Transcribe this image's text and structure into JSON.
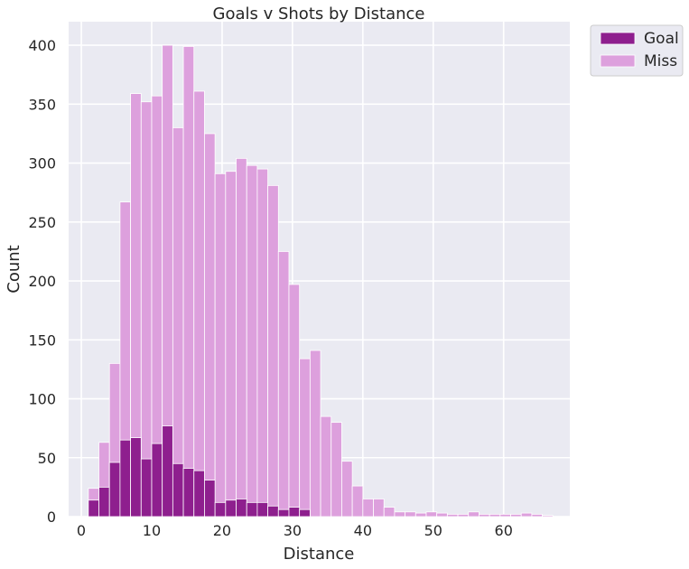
{
  "chart_data": {
    "type": "bar",
    "title": "Goals v Shots by Distance",
    "xlabel": "Distance",
    "ylabel": "Count",
    "xlim": [
      -1.8,
      69.4
    ],
    "ylim": [
      0,
      420
    ],
    "xticks": [
      0,
      10,
      20,
      30,
      40,
      50,
      60
    ],
    "yticks": [
      0,
      50,
      100,
      150,
      200,
      250,
      300,
      350,
      400
    ],
    "grid": true,
    "legend_position": "outside-top-right",
    "bin_start": 1,
    "bin_width": 1.5,
    "series": [
      {
        "name": "Goal",
        "color": "#8e1f8e",
        "values": [
          14,
          25,
          46,
          65,
          67,
          49,
          62,
          77,
          45,
          41,
          39,
          31,
          12,
          14,
          15,
          12,
          12,
          9,
          6,
          8,
          6,
          0,
          0,
          0,
          0,
          0,
          0,
          0,
          0,
          0,
          0,
          0,
          0,
          0,
          0,
          0,
          0,
          0,
          0,
          0,
          0,
          0,
          0,
          0
        ]
      },
      {
        "name": "Miss",
        "color": "#dda0dd",
        "values": [
          24,
          63,
          130,
          267,
          359,
          352,
          357,
          400,
          330,
          399,
          361,
          325,
          291,
          293,
          304,
          298,
          295,
          281,
          225,
          197,
          134,
          141,
          85,
          80,
          47,
          26,
          15,
          15,
          8,
          4,
          4,
          3,
          4,
          3,
          2,
          2,
          4,
          2,
          2,
          2,
          2,
          3,
          2,
          1
        ]
      }
    ]
  },
  "colors": {
    "background": "#eaeaf2",
    "grid": "#ffffff",
    "goal": "#8e1f8e",
    "miss": "#dda0dd"
  }
}
